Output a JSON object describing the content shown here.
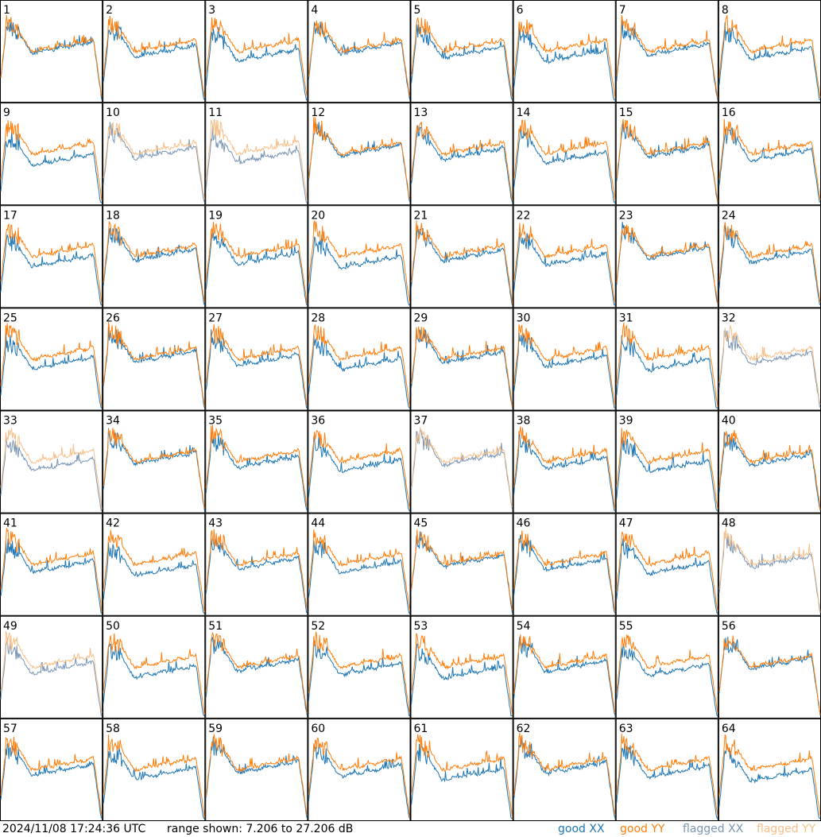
{
  "footer": {
    "timestamp": "2024/11/08 17:24:36 UTC",
    "range_label": "range shown: 7.206 to 27.206 dB"
  },
  "legend": {
    "good_prefix": "good",
    "flagged_prefix": "flagged",
    "xx": "XX",
    "yy": "YY"
  },
  "colors": {
    "good_xx": "#1f77b4",
    "good_yy": "#ff7f0e",
    "flagged_xx": "#7a96b4",
    "flagged_yy": "#f7c08a"
  },
  "chart_data": {
    "type": "line",
    "grid": {
      "rows": 8,
      "cols": 8
    },
    "y_range_db": [
      7.206,
      27.206
    ],
    "panels": [
      {
        "label": "1",
        "status": "good"
      },
      {
        "label": "2",
        "status": "good"
      },
      {
        "label": "3",
        "status": "good"
      },
      {
        "label": "4",
        "status": "good"
      },
      {
        "label": "5",
        "status": "good"
      },
      {
        "label": "6",
        "status": "good"
      },
      {
        "label": "7",
        "status": "good"
      },
      {
        "label": "8",
        "status": "good"
      },
      {
        "label": "9",
        "status": "good"
      },
      {
        "label": "10",
        "status": "flagged"
      },
      {
        "label": "11",
        "status": "flagged"
      },
      {
        "label": "12",
        "status": "good"
      },
      {
        "label": "13",
        "status": "good"
      },
      {
        "label": "14",
        "status": "good"
      },
      {
        "label": "15",
        "status": "good"
      },
      {
        "label": "16",
        "status": "good"
      },
      {
        "label": "17",
        "status": "good"
      },
      {
        "label": "18",
        "status": "good"
      },
      {
        "label": "19",
        "status": "good"
      },
      {
        "label": "20",
        "status": "good"
      },
      {
        "label": "21",
        "status": "good"
      },
      {
        "label": "22",
        "status": "good"
      },
      {
        "label": "23",
        "status": "good"
      },
      {
        "label": "24",
        "status": "good"
      },
      {
        "label": "25",
        "status": "good"
      },
      {
        "label": "26",
        "status": "good"
      },
      {
        "label": "27",
        "status": "good"
      },
      {
        "label": "28",
        "status": "good"
      },
      {
        "label": "29",
        "status": "good"
      },
      {
        "label": "30",
        "status": "good"
      },
      {
        "label": "31",
        "status": "good"
      },
      {
        "label": "32",
        "status": "flagged"
      },
      {
        "label": "33",
        "status": "flagged"
      },
      {
        "label": "34",
        "status": "good"
      },
      {
        "label": "35",
        "status": "good"
      },
      {
        "label": "36",
        "status": "good"
      },
      {
        "label": "37",
        "status": "flagged"
      },
      {
        "label": "38",
        "status": "good"
      },
      {
        "label": "39",
        "status": "good"
      },
      {
        "label": "40",
        "status": "good"
      },
      {
        "label": "41",
        "status": "good"
      },
      {
        "label": "42",
        "status": "good"
      },
      {
        "label": "43",
        "status": "good"
      },
      {
        "label": "44",
        "status": "good"
      },
      {
        "label": "45",
        "status": "good"
      },
      {
        "label": "46",
        "status": "good"
      },
      {
        "label": "47",
        "status": "good"
      },
      {
        "label": "48",
        "status": "flagged"
      },
      {
        "label": "49",
        "status": "flagged"
      },
      {
        "label": "50",
        "status": "good"
      },
      {
        "label": "51",
        "status": "good"
      },
      {
        "label": "52",
        "status": "good"
      },
      {
        "label": "53",
        "status": "good"
      },
      {
        "label": "54",
        "status": "good"
      },
      {
        "label": "55",
        "status": "good"
      },
      {
        "label": "56",
        "status": "good"
      },
      {
        "label": "57",
        "status": "good"
      },
      {
        "label": "58",
        "status": "good"
      },
      {
        "label": "59",
        "status": "good"
      },
      {
        "label": "60",
        "status": "good"
      },
      {
        "label": "61",
        "status": "good"
      },
      {
        "label": "62",
        "status": "good"
      },
      {
        "label": "63",
        "status": "good"
      },
      {
        "label": "64",
        "status": "good"
      }
    ]
  }
}
